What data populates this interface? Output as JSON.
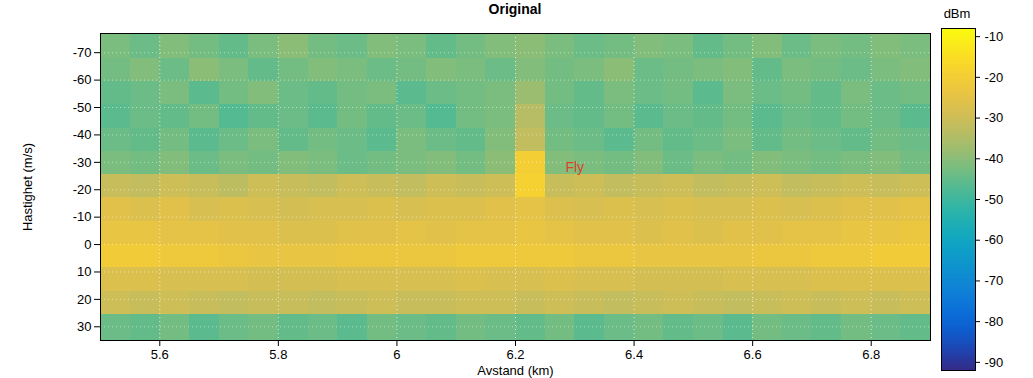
{
  "chart_data": {
    "type": "heatmap",
    "title": "Original",
    "xlabel": "Avstand (km)",
    "ylabel": "Hastighet (m/s)",
    "xlim": [
      5.5,
      6.9
    ],
    "xticks": [
      5.6,
      5.8,
      6,
      6.2,
      6.4,
      6.6,
      6.8
    ],
    "ylim": [
      -77,
      35
    ],
    "yticks": [
      -70,
      -60,
      -50,
      -40,
      -30,
      -20,
      -10,
      0,
      10,
      20,
      30
    ],
    "grid": true,
    "annotations": [
      {
        "text": "Fly",
        "x": 6.3,
        "y": -28,
        "color": "#e0402a"
      }
    ],
    "x_edges": [
      5.5,
      5.55,
      5.6,
      5.65,
      5.7,
      5.75,
      5.8,
      5.85,
      5.9,
      5.95,
      6,
      6.05,
      6.1,
      6.15,
      6.2,
      6.25,
      6.3,
      6.35,
      6.4,
      6.45,
      6.5,
      6.55,
      6.6,
      6.65,
      6.7,
      6.75,
      6.8,
      6.85,
      6.9
    ],
    "y_edges": [
      -77,
      -68,
      -59.5,
      -51,
      -42.5,
      -34,
      -25.5,
      -17,
      -8.5,
      0,
      8.5,
      17,
      25.5,
      35
    ],
    "cells": [
      [
        -42,
        -44,
        -41,
        -43,
        -45,
        -42,
        -40,
        -43,
        -44,
        -41,
        -42,
        -45,
        -43,
        -41,
        -40,
        -42,
        -44,
        -43,
        -41,
        -42,
        -45,
        -43,
        -41,
        -44,
        -42,
        -43,
        -41,
        -42
      ],
      [
        -43,
        -41,
        -44,
        -40,
        -42,
        -45,
        -43,
        -41,
        -42,
        -44,
        -43,
        -41,
        -42,
        -44,
        -41,
        -43,
        -42,
        -40,
        -44,
        -43,
        -42,
        -41,
        -45,
        -42,
        -43,
        -44,
        -42,
        -41
      ],
      [
        -45,
        -44,
        -42,
        -46,
        -43,
        -41,
        -44,
        -45,
        -43,
        -42,
        -46,
        -44,
        -43,
        -42,
        -38,
        -43,
        -45,
        -42,
        -44,
        -43,
        -46,
        -42,
        -44,
        -43,
        -45,
        -42,
        -44,
        -43
      ],
      [
        -46,
        -44,
        -45,
        -43,
        -47,
        -45,
        -44,
        -46,
        -43,
        -45,
        -44,
        -47,
        -43,
        -42,
        -34,
        -44,
        -45,
        -43,
        -46,
        -44,
        -45,
        -43,
        -46,
        -44,
        -45,
        -43,
        -44,
        -46
      ],
      [
        -44,
        -45,
        -43,
        -46,
        -44,
        -42,
        -45,
        -43,
        -44,
        -46,
        -42,
        -44,
        -45,
        -41,
        -32,
        -43,
        -44,
        -46,
        -43,
        -45,
        -44,
        -42,
        -45,
        -43,
        -44,
        -45,
        -43,
        -44
      ],
      [
        -42,
        -43,
        -41,
        -44,
        -42,
        -43,
        -41,
        -42,
        -44,
        -43,
        -42,
        -41,
        -43,
        -40,
        -20,
        -41,
        -42,
        -43,
        -41,
        -44,
        -42,
        -43,
        -41,
        -42,
        -43,
        -42,
        -41,
        -43
      ],
      [
        -31,
        -32,
        -30,
        -31,
        -33,
        -30,
        -31,
        -32,
        -30,
        -31,
        -32,
        -30,
        -31,
        -30,
        -19,
        -31,
        -30,
        -32,
        -31,
        -30,
        -32,
        -31,
        -30,
        -32,
        -31,
        -30,
        -31,
        -30
      ],
      [
        -26,
        -27,
        -26,
        -28,
        -27,
        -28,
        -29,
        -28,
        -28,
        -27,
        -28,
        -27,
        -27,
        -26,
        -25,
        -27,
        -28,
        -27,
        -28,
        -27,
        -28,
        -28,
        -27,
        -28,
        -27,
        -26,
        -26,
        -25
      ],
      [
        -24,
        -24,
        -25,
        -25,
        -26,
        -26,
        -27,
        -27,
        -26,
        -26,
        -25,
        -26,
        -25,
        -25,
        -24,
        -25,
        -26,
        -26,
        -27,
        -26,
        -27,
        -26,
        -26,
        -25,
        -25,
        -24,
        -24,
        -23
      ],
      [
        -21,
        -21,
        -22,
        -22,
        -23,
        -24,
        -24,
        -24,
        -23,
        -23,
        -23,
        -23,
        -22,
        -22,
        -22,
        -22,
        -23,
        -23,
        -24,
        -24,
        -24,
        -24,
        -23,
        -23,
        -22,
        -22,
        -21,
        -21
      ],
      [
        -27,
        -27,
        -28,
        -28,
        -28,
        -29,
        -29,
        -29,
        -28,
        -28,
        -28,
        -28,
        -27,
        -28,
        -28,
        -27,
        -28,
        -28,
        -29,
        -29,
        -29,
        -28,
        -28,
        -28,
        -27,
        -27,
        -27,
        -27
      ],
      [
        -30,
        -31,
        -30,
        -31,
        -32,
        -31,
        -31,
        -32,
        -31,
        -30,
        -31,
        -31,
        -30,
        -30,
        -31,
        -30,
        -31,
        -32,
        -31,
        -30,
        -31,
        -32,
        -31,
        -30,
        -31,
        -30,
        -31,
        -30
      ],
      [
        -44,
        -45,
        -43,
        -46,
        -44,
        -43,
        -45,
        -44,
        -46,
        -43,
        -44,
        -45,
        -43,
        -44,
        -45,
        -43,
        -46,
        -44,
        -43,
        -45,
        -44,
        -46,
        -43,
        -44,
        -45,
        -43,
        -44,
        -45
      ]
    ],
    "colorbar": {
      "label": "dBm",
      "lim": [
        -92,
        -8
      ],
      "ticks": [
        -90,
        -80,
        -70,
        -60,
        -50,
        -40,
        -30,
        -20,
        -10
      ]
    }
  }
}
